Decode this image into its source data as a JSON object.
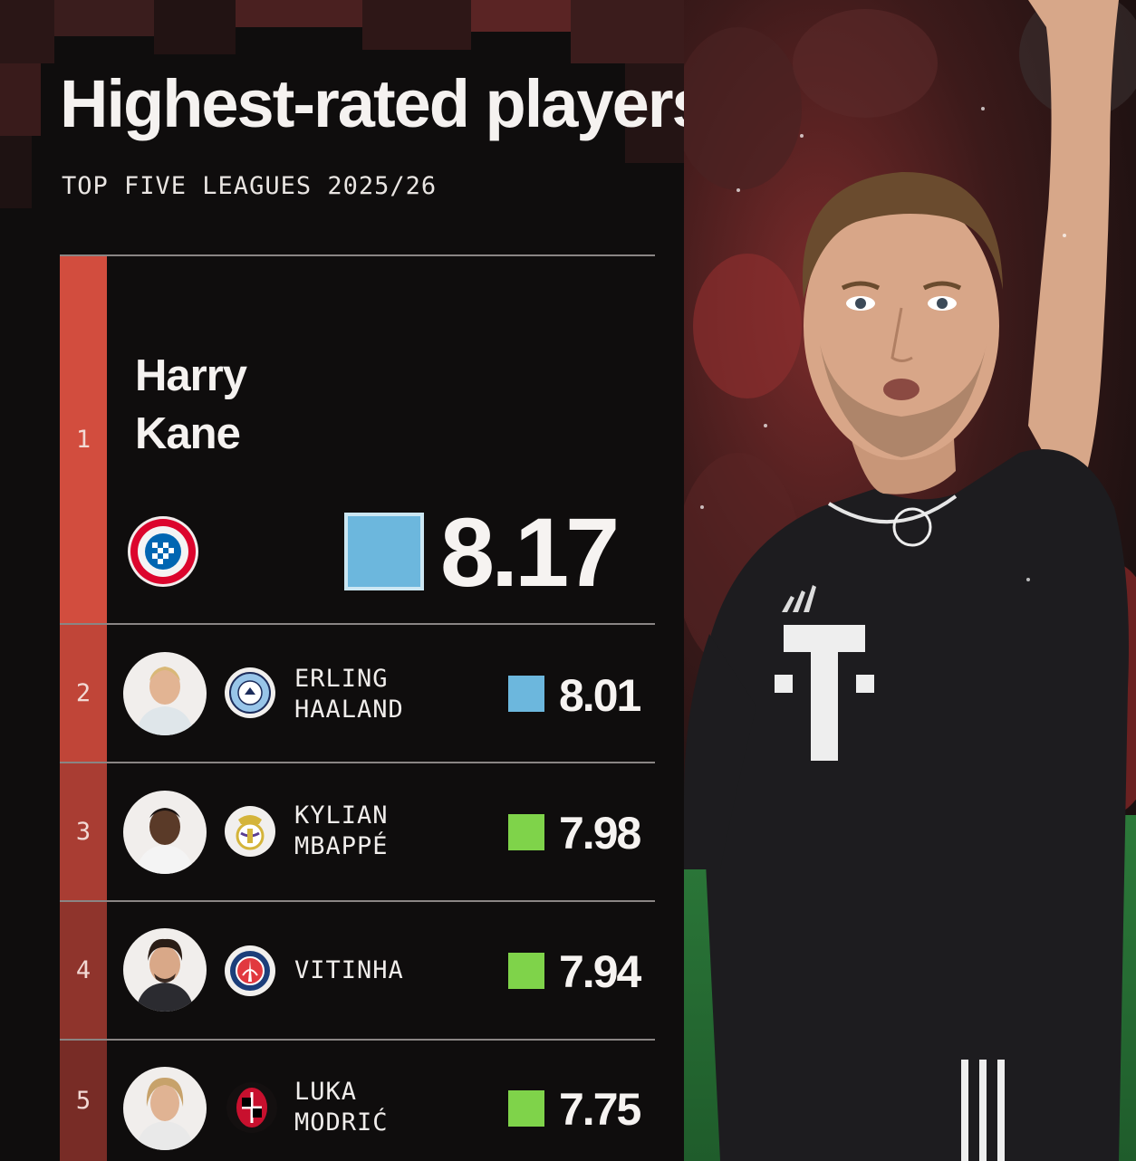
{
  "header": {
    "title": "Highest-rated players",
    "subtitle": "TOP FIVE LEAGUES 2025/26"
  },
  "colors": {
    "background": "#0f0d0d",
    "rank_bar": "#d24d3e",
    "score_blue": "#6cb7dd",
    "score_green": "#7fd34a"
  },
  "featured": {
    "rank": "1",
    "first_name": "Harry",
    "last_name": "Kane",
    "club_icon": "bayern-munchen-crest-icon",
    "rating": "8.17",
    "rating_color": "#6cb7dd"
  },
  "players": [
    {
      "rank": "2",
      "first_name": "ERLING",
      "last_name": "HAALAND",
      "club_icon": "manchester-city-crest-icon",
      "rating": "8.01",
      "rating_color": "#6cb7dd"
    },
    {
      "rank": "3",
      "first_name": "KYLIAN",
      "last_name": "MBAPPÉ",
      "club_icon": "real-madrid-crest-icon",
      "rating": "7.98",
      "rating_color": "#7fd34a"
    },
    {
      "rank": "4",
      "first_name": "VITINHA",
      "last_name": "",
      "club_icon": "psg-crest-icon",
      "rating": "7.94",
      "rating_color": "#7fd34a"
    },
    {
      "rank": "5",
      "first_name": "LUKA",
      "last_name": "MODRIĆ",
      "club_icon": "ac-milan-crest-icon",
      "rating": "7.75",
      "rating_color": "#7fd34a"
    }
  ]
}
